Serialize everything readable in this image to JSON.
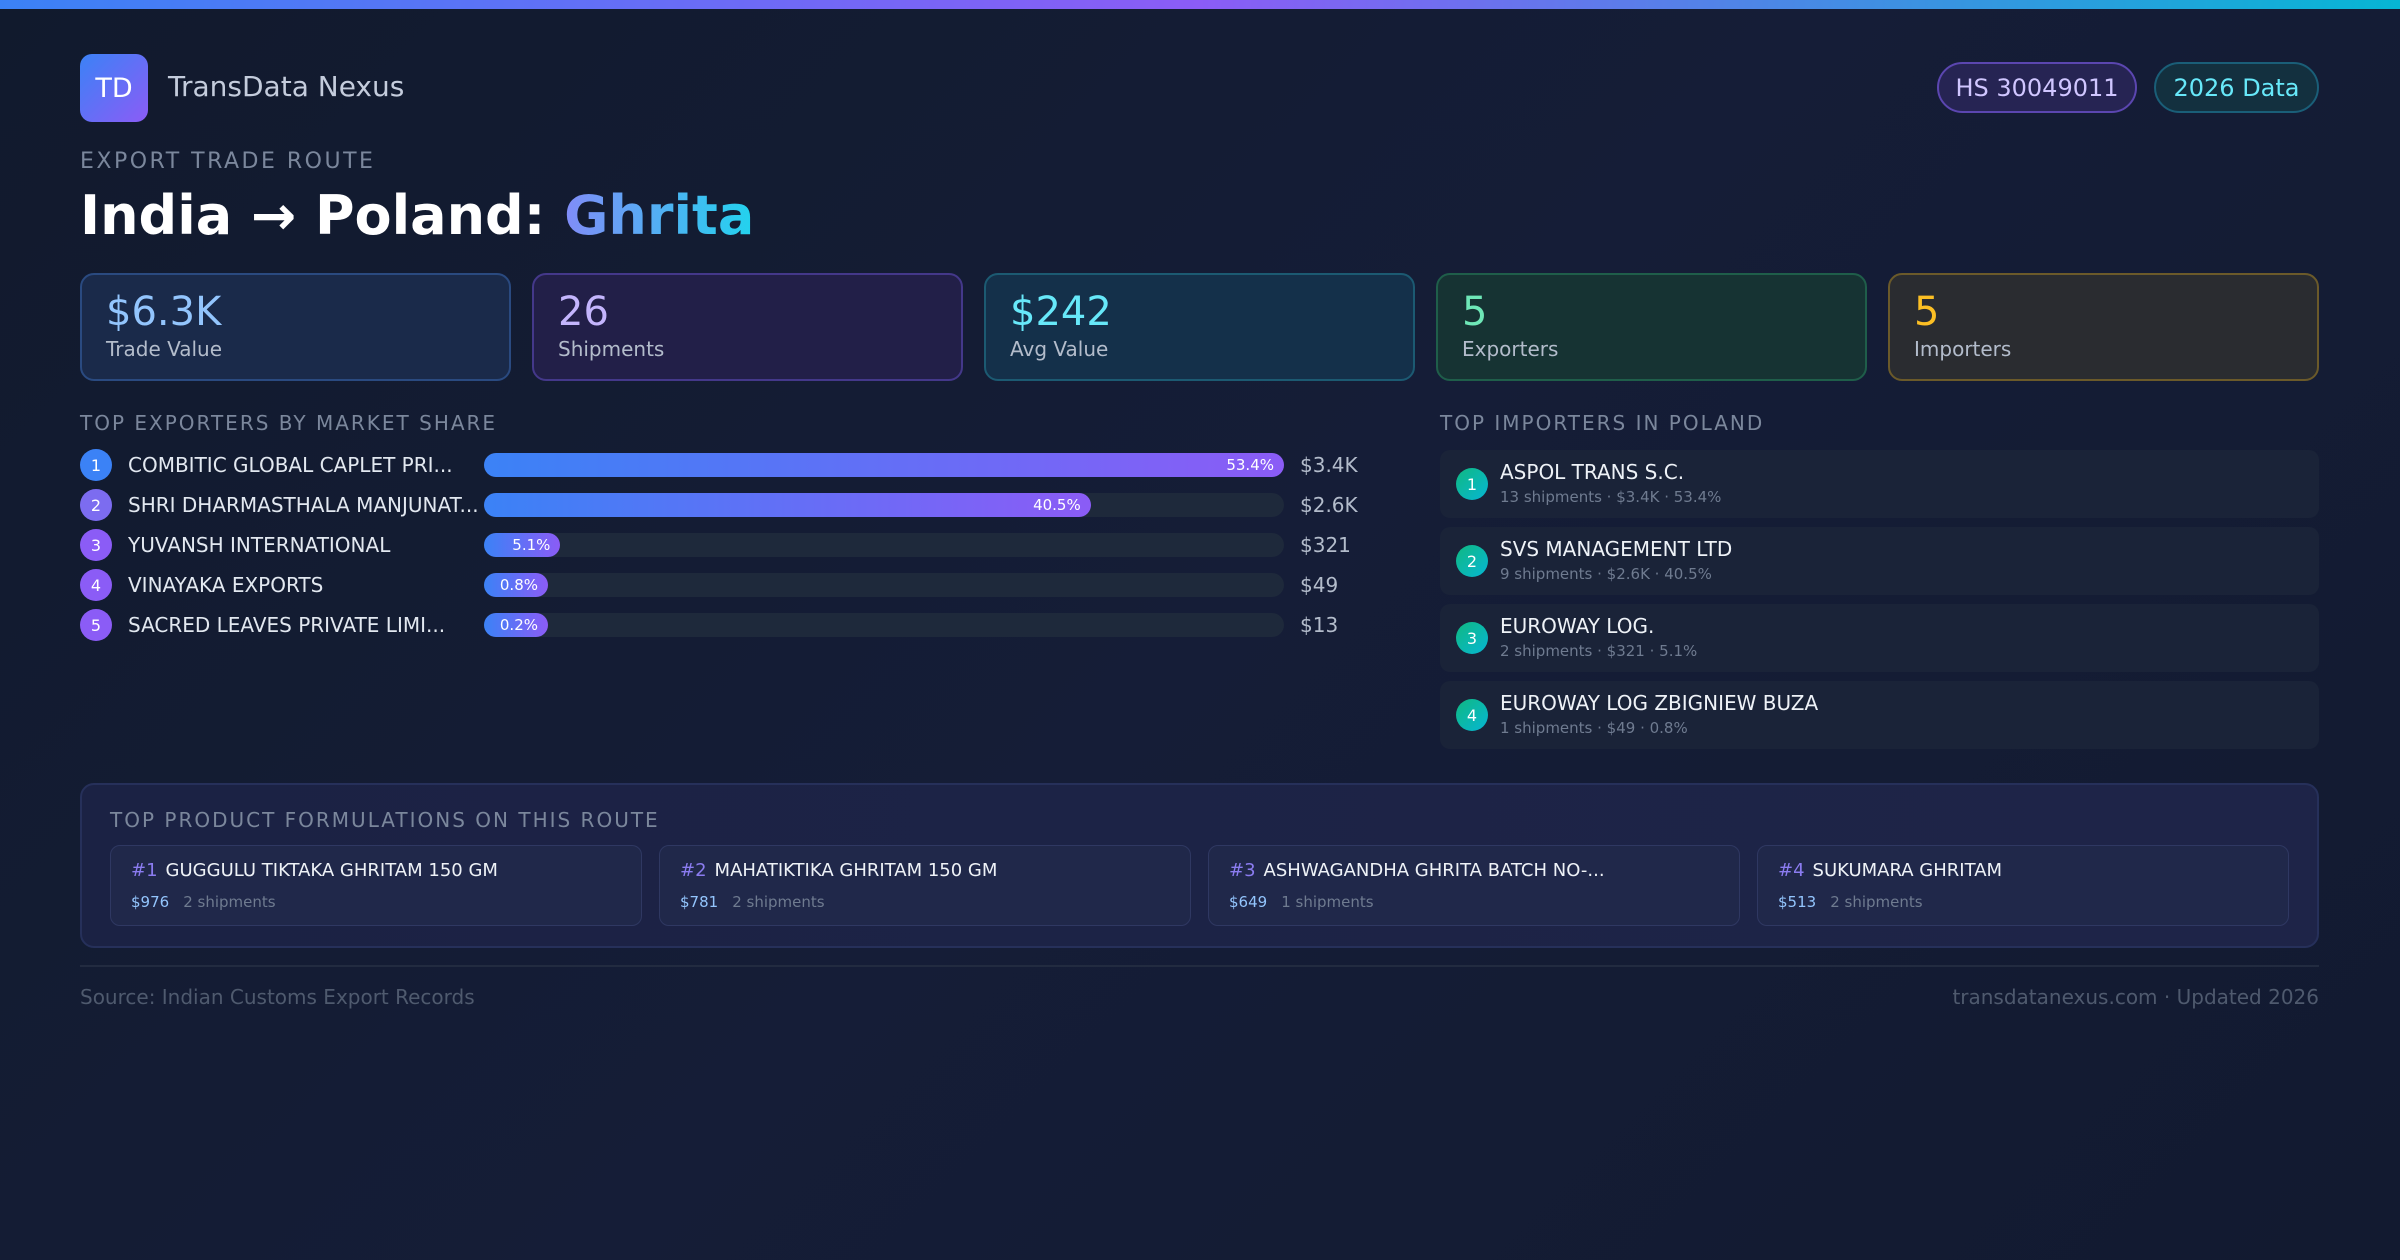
{
  "brand": {
    "logo": "TD",
    "name": "TransData Nexus"
  },
  "pills": {
    "hs": "HS 30049011",
    "year": "2026 Data"
  },
  "header": {
    "eyebrow": "EXPORT TRADE ROUTE",
    "title_prefix": "India → Poland: ",
    "title_product": "Ghrita"
  },
  "stats": [
    {
      "value": "$6.3K",
      "label": "Trade Value",
      "color": "#93c5fd"
    },
    {
      "value": "26",
      "label": "Shipments",
      "color": "#c4b5fd"
    },
    {
      "value": "$242",
      "label": "Avg Value",
      "color": "#67e8f9"
    },
    {
      "value": "5",
      "label": "Exporters",
      "color": "#6ee7b7"
    },
    {
      "value": "5",
      "label": "Importers",
      "color": "#fbbf24"
    }
  ],
  "exporters": {
    "heading": "TOP EXPORTERS BY MARKET SHARE",
    "items": [
      {
        "rank": "1",
        "name": "COMBITIC GLOBAL CAPLET PRI...",
        "share": 53.4,
        "share_label": "53.4%",
        "value": "$3.4K"
      },
      {
        "rank": "2",
        "name": "SHRI DHARMASTHALA MANJUNAT...",
        "share": 40.5,
        "share_label": "40.5%",
        "value": "$2.6K"
      },
      {
        "rank": "3",
        "name": "YUVANSH INTERNATIONAL",
        "share": 5.1,
        "share_label": "5.1%",
        "value": "$321"
      },
      {
        "rank": "4",
        "name": "VINAYAKA EXPORTS",
        "share": 0.8,
        "share_label": "0.8%",
        "value": "$49"
      },
      {
        "rank": "5",
        "name": "SACRED LEAVES PRIVATE LIMI...",
        "share": 0.2,
        "share_label": "0.2%",
        "value": "$13"
      }
    ]
  },
  "importers": {
    "heading": "TOP IMPORTERS IN POLAND",
    "items": [
      {
        "rank": "1",
        "name": "ASPOL TRANS S.C.",
        "stats": "13 shipments · $3.4K · 53.4%"
      },
      {
        "rank": "2",
        "name": "SVS MANAGEMENT LTD",
        "stats": "9 shipments · $2.6K · 40.5%"
      },
      {
        "rank": "3",
        "name": "EUROWAY LOG.",
        "stats": "2 shipments · $321 · 5.1%"
      },
      {
        "rank": "4",
        "name": "EUROWAY LOG ZBIGNIEW BUZA",
        "stats": "1 shipments · $49 · 0.8%"
      }
    ]
  },
  "products": {
    "heading": "TOP PRODUCT FORMULATIONS ON THIS ROUTE",
    "items": [
      {
        "rank": "#1",
        "name": "GUGGULU TIKTAKA GHRITAM 150 GM",
        "price": "$976",
        "shipments": "2 shipments"
      },
      {
        "rank": "#2",
        "name": "MAHATIKTIKA GHRITAM 150 GM",
        "price": "$781",
        "shipments": "2 shipments"
      },
      {
        "rank": "#3",
        "name": "ASHWAGANDHA GHRITA BATCH NO-...",
        "price": "$649",
        "shipments": "1 shipments"
      },
      {
        "rank": "#4",
        "name": "SUKUMARA GHRITAM",
        "price": "$513",
        "shipments": "2 shipments"
      }
    ]
  },
  "footer": {
    "source": "Source: Indian Customs Export Records",
    "site": "transdatanexus.com · Updated 2026"
  }
}
